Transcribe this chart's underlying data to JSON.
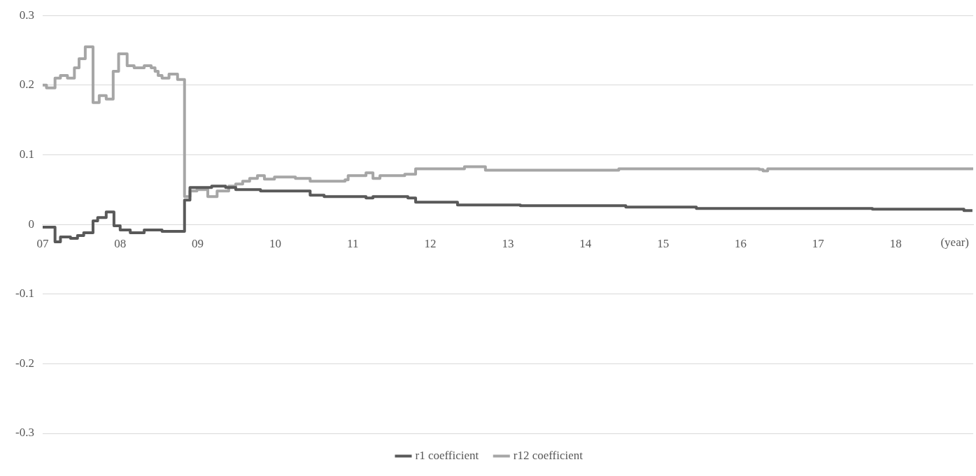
{
  "chart_data": {
    "type": "step",
    "xlabel": "(year)",
    "xlim": [
      2007,
      2019
    ],
    "xticks": [
      {
        "value": 2007,
        "label": "07"
      },
      {
        "value": 2008,
        "label": "08"
      },
      {
        "value": 2009,
        "label": "09"
      },
      {
        "value": 2010,
        "label": "10"
      },
      {
        "value": 2011,
        "label": "11"
      },
      {
        "value": 2012,
        "label": "12"
      },
      {
        "value": 2013,
        "label": "13"
      },
      {
        "value": 2014,
        "label": "14"
      },
      {
        "value": 2015,
        "label": "15"
      },
      {
        "value": 2016,
        "label": "16"
      },
      {
        "value": 2017,
        "label": "17"
      },
      {
        "value": 2018,
        "label": "18"
      }
    ],
    "ylim": [
      -0.3,
      0.3
    ],
    "yticks": [
      -0.3,
      -0.2,
      -0.1,
      0,
      0.1,
      0.2,
      0.3
    ],
    "grid": "y",
    "legend": "bottom",
    "marker": "none",
    "line_style": "solid",
    "series": [
      {
        "name": "r1 coefficient",
        "color": "#595959",
        "x": [
          2007,
          2007.16,
          2007.23,
          2007.36,
          2007.45,
          2007.53,
          2007.65,
          2007.71,
          2007.82,
          2007.92,
          2008.0,
          2008.13,
          2008.31,
          2008.54,
          2008.83,
          2008.9,
          2009.18,
          2009.36,
          2009.49,
          2009.81,
          2010.45,
          2010.63,
          2011.17,
          2011.26,
          2011.71,
          2011.81,
          2012.35,
          2013.16,
          2014.52,
          2015.43,
          2017.7,
          2018.88,
          2018.99
        ],
        "values": [
          -0.004,
          -0.025,
          -0.018,
          -0.02,
          -0.016,
          -0.012,
          0.005,
          0.01,
          0.018,
          -0.002,
          -0.008,
          -0.012,
          -0.008,
          -0.01,
          0.035,
          0.053,
          0.055,
          0.053,
          0.05,
          0.048,
          0.042,
          0.04,
          0.038,
          0.04,
          0.038,
          0.032,
          0.028,
          0.027,
          0.025,
          0.023,
          0.022,
          0.02,
          0.02
        ]
      },
      {
        "name": "r12 coefficient",
        "color": "#a6a6a6",
        "x": [
          2007,
          2007.05,
          2007.16,
          2007.23,
          2007.32,
          2007.41,
          2007.47,
          2007.55,
          2007.65,
          2007.73,
          2007.82,
          2007.91,
          2007.98,
          2008.09,
          2008.18,
          2008.31,
          2008.4,
          2008.45,
          2008.49,
          2008.54,
          2008.63,
          2008.74,
          2008.83,
          2008.9,
          2008.99,
          2009.13,
          2009.25,
          2009.4,
          2009.49,
          2009.58,
          2009.67,
          2009.77,
          2009.86,
          2009.99,
          2010.26,
          2010.45,
          2010.9,
          2010.94,
          2011.17,
          2011.26,
          2011.35,
          2011.67,
          2011.81,
          2012.35,
          2012.44,
          2012.71,
          2013.52,
          2014.43,
          2016.24,
          2016.29,
          2016.35,
          2018.99
        ],
        "values": [
          0.2,
          0.196,
          0.21,
          0.214,
          0.21,
          0.225,
          0.238,
          0.255,
          0.175,
          0.185,
          0.18,
          0.22,
          0.245,
          0.228,
          0.225,
          0.228,
          0.225,
          0.22,
          0.214,
          0.21,
          0.216,
          0.208,
          0.04,
          0.048,
          0.05,
          0.04,
          0.048,
          0.055,
          0.058,
          0.062,
          0.066,
          0.07,
          0.065,
          0.068,
          0.066,
          0.062,
          0.064,
          0.07,
          0.074,
          0.066,
          0.07,
          0.072,
          0.08,
          0.08,
          0.083,
          0.078,
          0.078,
          0.08,
          0.079,
          0.077,
          0.08,
          0.082
        ]
      }
    ]
  }
}
